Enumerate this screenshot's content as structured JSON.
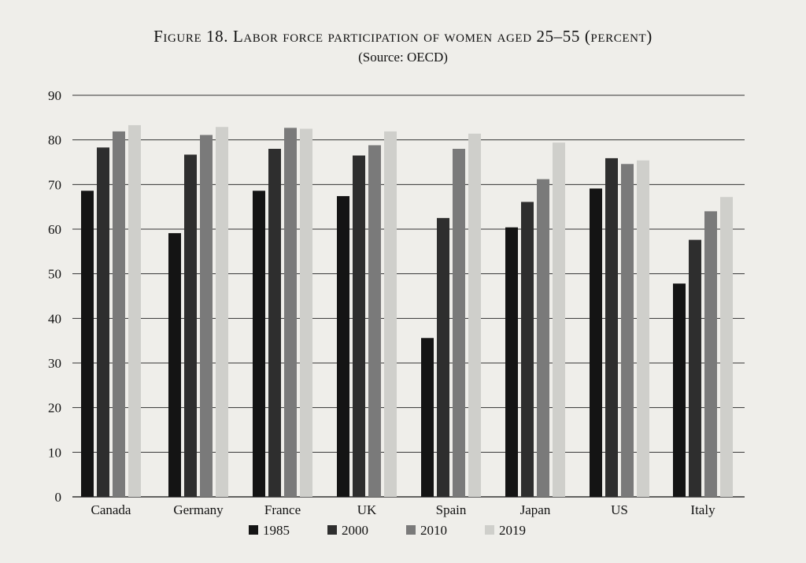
{
  "figure": {
    "title": "Figure 18. Labor force participation of women aged 25–55 (percent)",
    "source": "(Source: OECD)"
  },
  "chart_data": {
    "type": "bar",
    "categories": [
      "Canada",
      "Germany",
      "France",
      "UK",
      "Spain",
      "Japan",
      "US",
      "Italy"
    ],
    "series": [
      {
        "name": "1985",
        "color": "#141414",
        "values": [
          68.6,
          59.1,
          68.6,
          67.4,
          35.6,
          60.4,
          69.1,
          47.8
        ]
      },
      {
        "name": "2000",
        "color": "#2e2e2e",
        "values": [
          78.3,
          76.7,
          78.0,
          76.5,
          62.5,
          66.1,
          75.9,
          57.6
        ]
      },
      {
        "name": "2010",
        "color": "#7a7a7a",
        "values": [
          81.9,
          81.1,
          82.7,
          78.8,
          78.0,
          71.2,
          74.6,
          64.0
        ]
      },
      {
        "name": "2019",
        "color": "#cfcfcb",
        "values": [
          83.3,
          82.9,
          82.5,
          81.9,
          81.4,
          79.4,
          75.4,
          67.2
        ]
      }
    ],
    "y_ticks": [
      "0",
      "10",
      "20",
      "30",
      "40",
      "50",
      "60",
      "70",
      "80",
      "90"
    ],
    "ylim": [
      0,
      90
    ],
    "grid": true,
    "legend_position": "bottom-center"
  }
}
